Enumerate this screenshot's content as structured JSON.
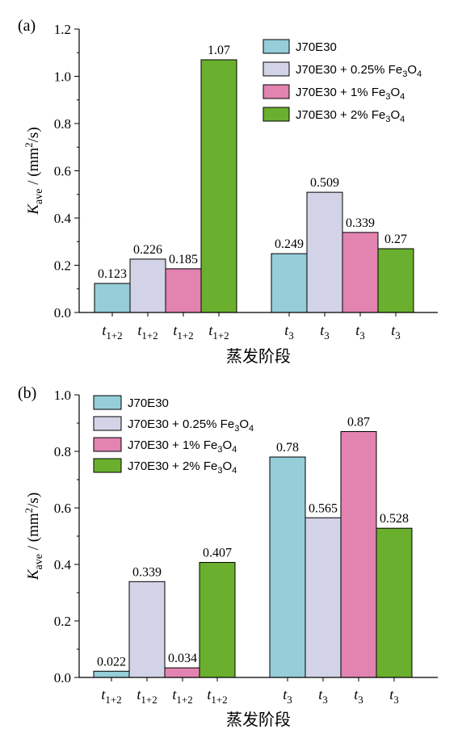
{
  "chart_data": [
    {
      "panel_label": "(a)",
      "type": "bar",
      "categories": [
        {
          "base": "t",
          "sub": "1+2"
        },
        {
          "base": "t",
          "sub": "3"
        }
      ],
      "series": [
        {
          "name": "J70E30",
          "name_parts": [
            "J70E30",
            "",
            "",
            "",
            ""
          ],
          "color": "#95cdd9",
          "values": [
            0.123,
            0.249
          ],
          "labels": [
            "0.123",
            "0.249"
          ]
        },
        {
          "name": "J70E30 + 0.25% Fe3O4",
          "name_parts": [
            "J70E30 + 0.25% Fe",
            "3",
            "O",
            "4",
            ""
          ],
          "color": "#d3d3e8",
          "values": [
            0.226,
            0.509
          ],
          "labels": [
            "0.226",
            "0.509"
          ]
        },
        {
          "name": "J70E30 + 1% Fe3O4",
          "name_parts": [
            "J70E30 + 1% Fe",
            "3",
            "O",
            "4",
            ""
          ],
          "color": "#e283b0",
          "values": [
            0.185,
            0.339
          ],
          "labels": [
            "0.185",
            "0.339"
          ]
        },
        {
          "name": "J70E30 + 2% Fe3O4",
          "name_parts": [
            "J70E30 + 2% Fe",
            "3",
            "O",
            "4",
            ""
          ],
          "color": "#6aaf2e",
          "values": [
            1.07,
            0.27
          ],
          "labels": [
            "1.07",
            "0.27"
          ]
        }
      ],
      "xlabel": "蒸发阶段",
      "ylabel": {
        "k": "K",
        "sub": "ave",
        "rest": " / (mm",
        "sup": "2",
        "end": "/s)"
      },
      "ylim": [
        0,
        1.2
      ],
      "yticks": [
        "0.0",
        "0.2",
        "0.4",
        "0.6",
        "0.8",
        "1.0",
        "1.2"
      ],
      "legend_position": "top-right",
      "grid": false
    },
    {
      "panel_label": "(b)",
      "type": "bar",
      "categories": [
        {
          "base": "t",
          "sub": "1+2"
        },
        {
          "base": "t",
          "sub": "3"
        }
      ],
      "series": [
        {
          "name": "J70E30",
          "name_parts": [
            "J70E30",
            "",
            "",
            "",
            ""
          ],
          "color": "#95cdd9",
          "values": [
            0.022,
            0.78
          ],
          "labels": [
            "0.022",
            "0.78"
          ]
        },
        {
          "name": "J70E30 + 0.25% Fe3O4",
          "name_parts": [
            "J70E30 + 0.25% Fe",
            "3",
            "O",
            "4",
            ""
          ],
          "color": "#d3d3e8",
          "values": [
            0.339,
            0.565
          ],
          "labels": [
            "0.339",
            "0.565"
          ]
        },
        {
          "name": "J70E30 + 1% Fe3O4",
          "name_parts": [
            "J70E30 + 1% Fe",
            "3",
            "O",
            "4",
            ""
          ],
          "color": "#e283b0",
          "values": [
            0.034,
            0.87
          ],
          "labels": [
            "0.034",
            "0.87"
          ]
        },
        {
          "name": "J70E30 + 2% Fe3O4",
          "name_parts": [
            "J70E30 + 2% Fe",
            "3",
            "O",
            "4",
            ""
          ],
          "color": "#6aaf2e",
          "values": [
            0.407,
            0.528
          ],
          "labels": [
            "0.407",
            "0.528"
          ]
        }
      ],
      "xlabel": "蒸发阶段",
      "ylabel": {
        "k": "K",
        "sub": "ave",
        "rest": " / (mm",
        "sup": "2",
        "end": "/s)"
      },
      "ylim": [
        0,
        1.0
      ],
      "yticks": [
        "0.0",
        "0.2",
        "0.4",
        "0.6",
        "0.8",
        "1.0"
      ],
      "legend_position": "top-left",
      "grid": false
    }
  ]
}
